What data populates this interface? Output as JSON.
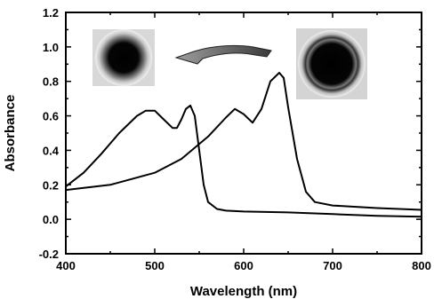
{
  "chart_data": {
    "type": "line",
    "title": "",
    "xlabel": "Wavelength (nm)",
    "ylabel": "Absorbance",
    "xlim": [
      400,
      800
    ],
    "ylim": [
      -0.2,
      1.2
    ],
    "xticks": [
      "400",
      "500",
      "600",
      "700",
      "800"
    ],
    "yticks": [
      "-0.2",
      "0.0",
      "0.2",
      "0.4",
      "0.6",
      "0.8",
      "1.0",
      "1.2"
    ],
    "grid": false,
    "legend": "none",
    "series": [
      {
        "color": "#000000",
        "x": [
          400,
          420,
          440,
          460,
          480,
          490,
          500,
          510,
          520,
          525,
          530,
          535,
          540,
          545,
          550,
          555,
          560,
          570,
          580,
          600,
          650,
          700,
          750,
          800
        ],
        "y": [
          0.19,
          0.27,
          0.38,
          0.5,
          0.6,
          0.63,
          0.63,
          0.58,
          0.53,
          0.53,
          0.58,
          0.64,
          0.66,
          0.6,
          0.4,
          0.2,
          0.1,
          0.06,
          0.05,
          0.045,
          0.04,
          0.03,
          0.02,
          0.015
        ]
      },
      {
        "color": "#000000",
        "x": [
          400,
          450,
          500,
          530,
          560,
          580,
          590,
          600,
          610,
          620,
          630,
          640,
          645,
          650,
          660,
          670,
          680,
          700,
          750,
          800
        ],
        "y": [
          0.17,
          0.2,
          0.27,
          0.35,
          0.48,
          0.59,
          0.64,
          0.61,
          0.56,
          0.64,
          0.8,
          0.85,
          0.82,
          0.65,
          0.35,
          0.16,
          0.1,
          0.08,
          0.065,
          0.055
        ]
      }
    ],
    "annotations": [
      {
        "type": "image",
        "label": "blue-particle-photo"
      },
      {
        "type": "arrow",
        "label": "conversion-arrow"
      },
      {
        "type": "image",
        "label": "green-particle-photo"
      }
    ]
  }
}
